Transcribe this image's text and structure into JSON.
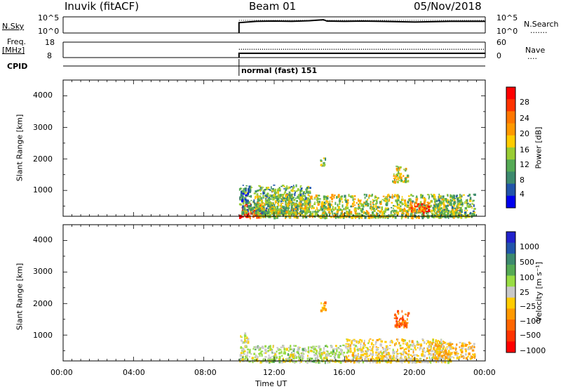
{
  "header": {
    "station": "Inuvik (fitACF)",
    "beam": "Beam 01",
    "date": "05/Nov/2018"
  },
  "top_panels": {
    "nsky_label": "N.Sky",
    "nsky_ticks": [
      "10^5",
      "10^0"
    ],
    "nsearch_label": "N.Search",
    "nsearch_ticks": [
      "10^5",
      "10^0"
    ],
    "nsearch_legend": "·······",
    "freq_label": "Freq.",
    "freq_unit": "[MHz]",
    "freq_ticks": [
      "18",
      "8"
    ],
    "nave_label": "Nave",
    "nave_ticks": [
      "60",
      "0"
    ],
    "nave_legend": "····",
    "cpid_label": "CPID",
    "cpid_value": "normal (fast) 151"
  },
  "power_colorbar": {
    "label": "Power [dB]",
    "ticks": [
      "28",
      "24",
      "20",
      "16",
      "12",
      "8",
      "4"
    ],
    "colors": [
      "#ff0000",
      "#ff3300",
      "#ff7700",
      "#ff9900",
      "#ffcc00",
      "#99cc33",
      "#55aa55",
      "#3d8a6e",
      "#2255aa",
      "#0000ee"
    ]
  },
  "velocity_colorbar": {
    "label": "Velocity [m s⁻¹]",
    "ticks": [
      "1000",
      "500",
      "100",
      "25",
      "−25",
      "−100",
      "−500",
      "−1000"
    ],
    "colors": [
      "#2222cc",
      "#2255aa",
      "#3d8a6e",
      "#55aa55",
      "#99dd44",
      "#c8c8c8",
      "#ffcc00",
      "#ff9900",
      "#ff6600",
      "#ff3300",
      "#ff0000"
    ]
  },
  "axes": {
    "ylabel": "Slant Range [km]",
    "xlabel": "Time UT",
    "yticks": [
      "4000",
      "3000",
      "2000",
      "1000"
    ],
    "xticks": [
      "00:00",
      "04:00",
      "08:00",
      "12:00",
      "16:00",
      "20:00",
      "00:00"
    ]
  },
  "chart_data": [
    {
      "type": "heatmap",
      "name": "power",
      "xlabel": "Time UT",
      "ylabel": "Slant Range [km]",
      "xlim": [
        0,
        24
      ],
      "ylim": [
        180,
        4500
      ],
      "zlabel": "Power [dB]",
      "zlim": [
        0,
        30
      ],
      "regions": [
        {
          "t0": 10.0,
          "t1": 11.3,
          "r0": 180,
          "r1": 600,
          "z": 27
        },
        {
          "t0": 10.0,
          "t1": 14.0,
          "r0": 300,
          "r1": 1200,
          "z": 10
        },
        {
          "t0": 10.0,
          "t1": 10.5,
          "r0": 700,
          "r1": 1100,
          "z": 6
        },
        {
          "t0": 11.0,
          "t1": 22.6,
          "r0": 180,
          "r1": 900,
          "z": 14
        },
        {
          "t0": 14.6,
          "t1": 14.9,
          "r0": 1800,
          "r1": 2100,
          "z": 12
        },
        {
          "t0": 18.7,
          "t1": 19.6,
          "r0": 1300,
          "r1": 1800,
          "z": 15
        },
        {
          "t0": 19.7,
          "t1": 20.8,
          "r0": 350,
          "r1": 700,
          "z": 24
        },
        {
          "t0": 21.0,
          "t1": 23.4,
          "r0": 200,
          "r1": 900,
          "z": 11
        }
      ]
    },
    {
      "type": "heatmap",
      "name": "velocity",
      "xlabel": "Time UT",
      "ylabel": "Slant Range [km]",
      "xlim": [
        0,
        24
      ],
      "ylim": [
        180,
        4500
      ],
      "zlabel": "Velocity [m s⁻¹]",
      "zlim": [
        -1000,
        1000
      ],
      "regions": [
        {
          "t0": 10.0,
          "t1": 16.0,
          "r0": 180,
          "r1": 700,
          "z": 100
        },
        {
          "t0": 16.0,
          "t1": 22.0,
          "r0": 180,
          "r1": 900,
          "z": -100
        },
        {
          "t0": 10.0,
          "t1": 10.5,
          "r0": 800,
          "r1": 1100,
          "z": 0
        },
        {
          "t0": 14.6,
          "t1": 14.9,
          "r0": 1800,
          "r1": 2100,
          "z": -300
        },
        {
          "t0": 18.8,
          "t1": 19.6,
          "r0": 1300,
          "r1": 1800,
          "z": -600
        },
        {
          "t0": 21.0,
          "t1": 23.4,
          "r0": 300,
          "r1": 800,
          "z": -200
        }
      ]
    },
    {
      "type": "line",
      "name": "n_sky",
      "x": [
        10.0,
        11,
        12,
        13,
        14,
        14.8,
        15,
        16,
        17,
        18,
        19,
        20,
        21,
        22,
        23,
        24
      ],
      "y": [
        3.2,
        3.6,
        3.7,
        3.6,
        3.8,
        4.1,
        3.7,
        3.6,
        3.7,
        3.6,
        3.5,
        3.4,
        3.5,
        3.6,
        3.6,
        3.6
      ],
      "ylim": [
        0,
        5
      ]
    },
    {
      "type": "line",
      "name": "freq",
      "x": [
        10.0,
        24
      ],
      "y": [
        10.8,
        10.8
      ],
      "ylim": [
        8,
        18
      ]
    },
    {
      "type": "line",
      "name": "nave",
      "x": [
        10.0,
        24
      ],
      "y": [
        24,
        24
      ],
      "ylim": [
        0,
        60
      ]
    }
  ]
}
